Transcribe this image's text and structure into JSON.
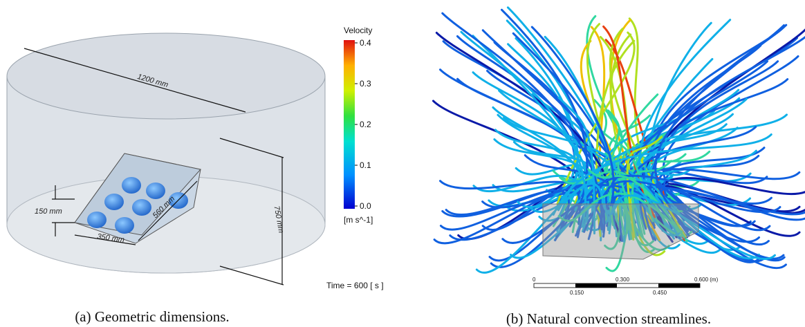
{
  "panel_a": {
    "dimensions": {
      "diameter": "1200 mm",
      "height": "750 mm",
      "box_height": "150 mm",
      "box_width": "350 mm",
      "box_depth": "560 mm"
    },
    "caption": "(a) Geometric dimensions."
  },
  "panel_b": {
    "legend": {
      "title": "Velocity",
      "ticks": [
        "0.4",
        "0.3",
        "0.2",
        "0.1",
        "0.0"
      ],
      "unit": "[m s^-1]"
    },
    "time": "Time = 600 [ s ]",
    "scale": {
      "top": [
        "0",
        "0.300",
        "0.600 (m)"
      ],
      "bottom": [
        "0.150",
        "0.450"
      ]
    },
    "caption": "(b) Natural convection streamlines."
  }
}
